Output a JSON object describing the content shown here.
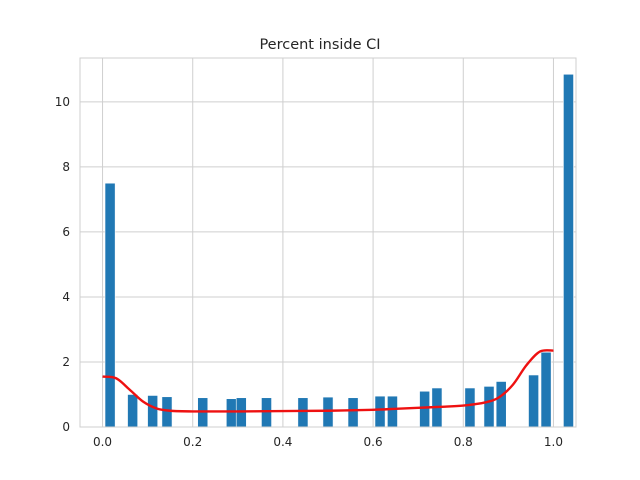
{
  "chart_data": {
    "type": "bar",
    "title": "Percent inside CI",
    "xlabel": "",
    "ylabel": "",
    "xlim": [
      -0.05,
      1.05
    ],
    "ylim": [
      0,
      11.35
    ],
    "xticks": [
      0.0,
      0.2,
      0.4,
      0.6,
      0.8,
      1.0
    ],
    "xtick_labels": [
      "0.0",
      "0.2",
      "0.4",
      "0.6",
      "0.8",
      "1.0"
    ],
    "yticks": [
      0,
      2,
      4,
      6,
      8,
      10
    ],
    "ytick_labels": [
      "0",
      "2",
      "4",
      "6",
      "8",
      "10"
    ],
    "grid": true,
    "bin_width": 0.0225,
    "bars": [
      {
        "x": 0.0167,
        "height": 7.5
      },
      {
        "x": 0.0667,
        "height": 1.0
      },
      {
        "x": 0.1111,
        "height": 0.97
      },
      {
        "x": 0.1429,
        "height": 0.93
      },
      {
        "x": 0.2222,
        "height": 0.9
      },
      {
        "x": 0.2857,
        "height": 0.87
      },
      {
        "x": 0.3077,
        "height": 0.9
      },
      {
        "x": 0.3636,
        "height": 0.9
      },
      {
        "x": 0.4444,
        "height": 0.9
      },
      {
        "x": 0.5,
        "height": 0.92
      },
      {
        "x": 0.5556,
        "height": 0.9
      },
      {
        "x": 0.6154,
        "height": 0.95
      },
      {
        "x": 0.6429,
        "height": 0.95
      },
      {
        "x": 0.7143,
        "height": 1.1
      },
      {
        "x": 0.7416,
        "height": 1.2
      },
      {
        "x": 0.8148,
        "height": 1.2
      },
      {
        "x": 0.8571,
        "height": 1.25
      },
      {
        "x": 0.8841,
        "height": 1.4
      },
      {
        "x": 0.9559,
        "height": 1.6
      },
      {
        "x": 0.9836,
        "height": 2.3
      },
      {
        "x": 1.0333,
        "height": 10.85
      }
    ],
    "kde_curve": {
      "x": [
        0.0,
        0.03,
        0.06,
        0.09,
        0.12,
        0.15,
        0.2,
        0.3,
        0.4,
        0.5,
        0.6,
        0.65,
        0.7,
        0.75,
        0.8,
        0.85,
        0.88,
        0.91,
        0.94,
        0.97,
        1.0
      ],
      "y": [
        1.55,
        1.5,
        1.15,
        0.78,
        0.57,
        0.5,
        0.48,
        0.48,
        0.49,
        0.5,
        0.53,
        0.56,
        0.59,
        0.62,
        0.66,
        0.76,
        0.92,
        1.3,
        1.9,
        2.32,
        2.35
      ]
    },
    "colors": {
      "bar": "#2078b4",
      "curve": "#ee1111",
      "grid": "#cfcfcf",
      "text": "#262626"
    }
  }
}
